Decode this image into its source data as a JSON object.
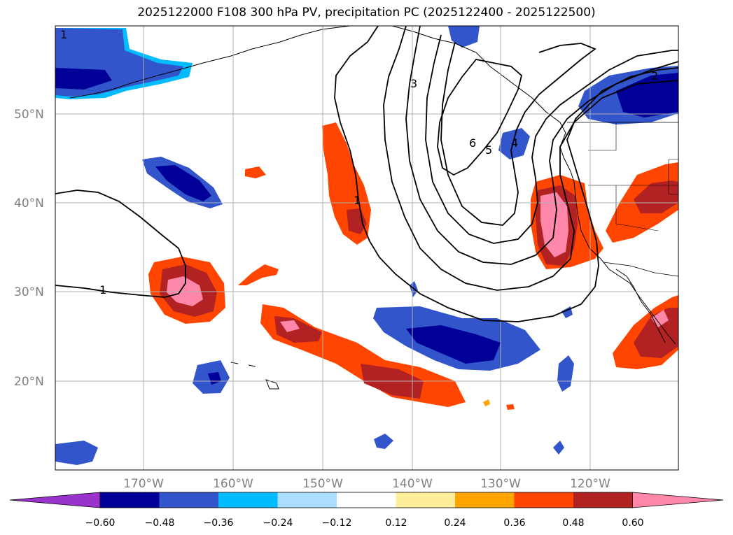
{
  "title": "2025122000 F108 300 hPa PV, precipitation PC (2025122400 - 2025122500)",
  "lat_labels": [
    "50°N",
    "40°N",
    "30°N",
    "20°N"
  ],
  "lon_labels": [
    "170°W",
    "160°W",
    "150°W",
    "140°W",
    "130°W",
    "120°W"
  ],
  "colorbar": {
    "colors": [
      "#9933cc",
      "#000099",
      "#3355cc",
      "#00bbff",
      "#aaddff",
      "#ffffff",
      "#ffee99",
      "#ffa500",
      "#ff4500",
      "#b22222",
      "#ff88aa"
    ],
    "tick_labels": [
      "−0.60",
      "−0.48",
      "−0.36",
      "−0.24",
      "−0.12",
      "0.12",
      "0.24",
      "0.36",
      "0.48",
      "0.60"
    ]
  },
  "contour_labels": [
    "1",
    "1",
    "1",
    "2",
    "3",
    "4",
    "5",
    "6"
  ],
  "colors": {
    "orange": "#ff4500",
    "darkred": "#b22222",
    "pink": "#ff88aa",
    "blue": "#3355cc",
    "navy": "#000099",
    "cyan": "#00bbff"
  }
}
